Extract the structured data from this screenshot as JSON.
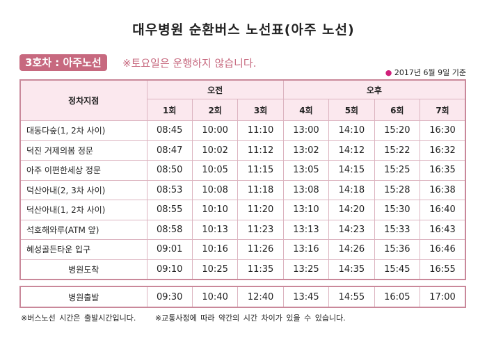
{
  "title": "대우병원 순환버스 노선표(아주 노선)",
  "route_label": "3호차 : 아주노선",
  "notice": "※토요일은 운행하지 않습니다.",
  "date": "2017년 6월 9일 기준",
  "colors": {
    "accent": "#c7697f",
    "border": "#c9889a",
    "header_bg": "#fbe8ee"
  },
  "table": {
    "stop_header": "정차지점",
    "am": "오전",
    "pm": "오후",
    "runs": [
      "1회",
      "2회",
      "3회",
      "4회",
      "5회",
      "6회",
      "7회"
    ],
    "rows": [
      {
        "stop": "대동다숲(1, 2차 사이)",
        "times": [
          "08:45",
          "10:00",
          "11:10",
          "13:00",
          "14:10",
          "15:20",
          "16:30"
        ]
      },
      {
        "stop": "덕진 거제의봄 정문",
        "times": [
          "08:47",
          "10:02",
          "11:12",
          "13:02",
          "14:12",
          "15:22",
          "16:32"
        ]
      },
      {
        "stop": "아주 이편한세상 정문",
        "times": [
          "08:50",
          "10:05",
          "11:15",
          "13:05",
          "14:15",
          "15:25",
          "16:35"
        ]
      },
      {
        "stop": "덕산아내(2, 3차 사이)",
        "times": [
          "08:53",
          "10:08",
          "11:18",
          "13:08",
          "14:18",
          "15:28",
          "16:38"
        ]
      },
      {
        "stop": "덕산아내(1, 2차 사이)",
        "times": [
          "08:55",
          "10:10",
          "11:20",
          "13:10",
          "14:20",
          "15:30",
          "16:40"
        ]
      },
      {
        "stop": "석호해와루(ATM 앞)",
        "times": [
          "08:58",
          "10:13",
          "11:23",
          "13:13",
          "14:23",
          "15:33",
          "16:43"
        ]
      },
      {
        "stop": "혜성골든타운 입구",
        "times": [
          "09:01",
          "10:16",
          "11:26",
          "13:16",
          "14:26",
          "15:36",
          "16:46"
        ]
      },
      {
        "stop": "병원도착",
        "times": [
          "09:10",
          "10:25",
          "11:35",
          "13:25",
          "14:35",
          "15:45",
          "16:55"
        ]
      }
    ],
    "departure": {
      "stop": "병원출발",
      "times": [
        "09:30",
        "10:40",
        "12:40",
        "13:45",
        "14:55",
        "16:05",
        "17:00"
      ]
    }
  },
  "notes": [
    "※버스노선 시간은 출발시간입니다.",
    "※교통사정에 따라 약간의 시간 차이가 있을 수 있습니다."
  ]
}
